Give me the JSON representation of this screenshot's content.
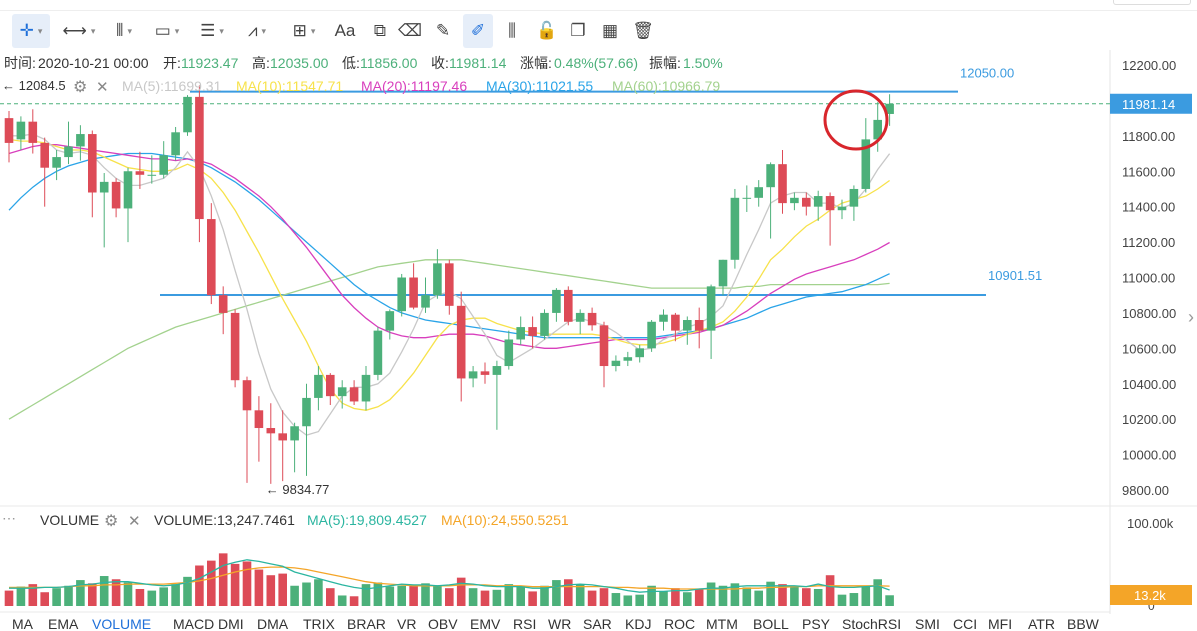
{
  "info_bar": {
    "time_label": "时间:",
    "time": "2020-10-21 00:00",
    "open_label": "开:",
    "open": "11923.47",
    "high_label": "高:",
    "high": "12035.00",
    "low_label": "低:",
    "low": "11856.00",
    "close_label": "收:",
    "close": "11981.14",
    "change_label": "涨幅:",
    "change": "0.48%(57.66)",
    "amp_label": "振幅:",
    "amp": "1.50%"
  },
  "ma_legend": {
    "label": "MA",
    "items": [
      {
        "text": "MA(5):11699.31",
        "color": "#c8c8c8"
      },
      {
        "text": "MA(10):11547.71",
        "color": "#f7e24b"
      },
      {
        "text": "MA(20):11197.46",
        "color": "#d83fbd"
      },
      {
        "text": "MA(30):11021.55",
        "color": "#2aa4e8"
      },
      {
        "text": "MA(60):10966.79",
        "color": "#a3d28e"
      }
    ],
    "cut_label": "← 12084.5"
  },
  "volume_legend": {
    "label": "VOLUME",
    "value": "VOLUME:13,247.7461",
    "ma5": "MA(5):19,809.4527",
    "ma10": "MA(10):24,550.5251",
    "ma5_color": "#2bb5a0",
    "ma10_color": "#f4a528"
  },
  "colors": {
    "up": "#4cb07a",
    "down": "#dd4b57",
    "hline": "#3b9be0",
    "price_box": "#3b9be0",
    "vol_box": "#f4a528",
    "circle": "#d8262c"
  },
  "price_tag": "11981.14",
  "vol_tag": "13.2k",
  "min_annotation": "← 9834.77",
  "toolbar_icons": [
    "crosshair-icon",
    "measure-icon",
    "bars-icon",
    "rectangle-icon",
    "list-icon",
    "fibonacci-icon",
    "zoom-icon",
    "text-icon",
    "pattern-icon",
    "eraser-icon",
    "pencil-icon",
    "draw-icon",
    "candle-style-icon",
    "lock-icon",
    "copy-icon",
    "layout-icon",
    "trash-icon"
  ],
  "toolbar_text": {
    "text_tool": "Aa"
  },
  "bottom_tabs": [
    "MA",
    "EMA",
    "VOLUME",
    "MACD",
    "DMI",
    "DMA",
    "TRIX",
    "BRAR",
    "VR",
    "OBV",
    "EMV",
    "RSI",
    "WR",
    "SAR",
    "KDJ",
    "ROC",
    "MTM",
    "BOLL",
    "PSY",
    "StochRSI",
    "SMI",
    "CCI",
    "MFI",
    "ATR",
    "BBW"
  ],
  "active_tab": "VOLUME",
  "chart_data": {
    "type": "candlestick",
    "price_axis": {
      "ticks": [
        12200,
        12000,
        11800,
        11600,
        11400,
        11200,
        11000,
        10800,
        10600,
        10400,
        10200,
        10000,
        9800
      ],
      "tick_labels": [
        "12200.00",
        "12000.00",
        "11800.00",
        "11600.00",
        "11400.00",
        "11200.00",
        "11000.00",
        "10800.00",
        "10600.00",
        "10400.00",
        "10200.00",
        "10000.00",
        "9800.00"
      ]
    },
    "volume_axis": {
      "max_label": "100.00k",
      "min_label": "0",
      "max": 100000
    },
    "horizontal_lines": [
      {
        "value": 12050,
        "label": "12050.00"
      },
      {
        "value": 10901.51,
        "label": "10901.51"
      }
    ],
    "candles": [
      {
        "o": 11900,
        "h": 11940,
        "l": 11650,
        "c": 11760,
        "v": 19000
      },
      {
        "o": 11780,
        "h": 11910,
        "l": 11720,
        "c": 11880,
        "v": 24000
      },
      {
        "o": 11880,
        "h": 11950,
        "l": 11700,
        "c": 11760,
        "v": 27000
      },
      {
        "o": 11760,
        "h": 11790,
        "l": 11400,
        "c": 11620,
        "v": 17000
      },
      {
        "o": 11620,
        "h": 11720,
        "l": 11550,
        "c": 11680,
        "v": 22000
      },
      {
        "o": 11680,
        "h": 11880,
        "l": 11640,
        "c": 11740,
        "v": 25000
      },
      {
        "o": 11740,
        "h": 11860,
        "l": 11660,
        "c": 11810,
        "v": 32000
      },
      {
        "o": 11810,
        "h": 11830,
        "l": 11340,
        "c": 11480,
        "v": 28000
      },
      {
        "o": 11480,
        "h": 11590,
        "l": 11170,
        "c": 11540,
        "v": 37000
      },
      {
        "o": 11540,
        "h": 11560,
        "l": 11340,
        "c": 11390,
        "v": 33000
      },
      {
        "o": 11390,
        "h": 11620,
        "l": 11200,
        "c": 11600,
        "v": 29000
      },
      {
        "o": 11600,
        "h": 11710,
        "l": 11500,
        "c": 11580,
        "v": 21000
      },
      {
        "o": 11580,
        "h": 11690,
        "l": 11530,
        "c": 11580,
        "v": 19000
      },
      {
        "o": 11580,
        "h": 11770,
        "l": 11560,
        "c": 11690,
        "v": 23000
      },
      {
        "o": 11690,
        "h": 11850,
        "l": 11660,
        "c": 11820,
        "v": 27000
      },
      {
        "o": 11820,
        "h": 12030,
        "l": 11800,
        "c": 12020,
        "v": 36000
      },
      {
        "o": 12020,
        "h": 12085,
        "l": 11200,
        "c": 11330,
        "v": 50000
      },
      {
        "o": 11330,
        "h": 11420,
        "l": 10850,
        "c": 10900,
        "v": 56000
      },
      {
        "o": 10900,
        "h": 10950,
        "l": 10680,
        "c": 10800,
        "v": 65000
      },
      {
        "o": 10800,
        "h": 10820,
        "l": 10380,
        "c": 10420,
        "v": 52000
      },
      {
        "o": 10420,
        "h": 10440,
        "l": 9840,
        "c": 10250,
        "v": 55000
      },
      {
        "o": 10250,
        "h": 10330,
        "l": 9960,
        "c": 10150,
        "v": 45000
      },
      {
        "o": 10150,
        "h": 10290,
        "l": 9834.77,
        "c": 10120,
        "v": 38000
      },
      {
        "o": 10120,
        "h": 10250,
        "l": 9850,
        "c": 10080,
        "v": 40000
      },
      {
        "o": 10080,
        "h": 10180,
        "l": 9900,
        "c": 10160,
        "v": 25000
      },
      {
        "o": 10160,
        "h": 10400,
        "l": 9880,
        "c": 10320,
        "v": 29000
      },
      {
        "o": 10320,
        "h": 10500,
        "l": 10250,
        "c": 10450,
        "v": 33000
      },
      {
        "o": 10450,
        "h": 10460,
        "l": 10280,
        "c": 10330,
        "v": 22000
      },
      {
        "o": 10330,
        "h": 10420,
        "l": 10260,
        "c": 10380,
        "v": 13000
      },
      {
        "o": 10380,
        "h": 10420,
        "l": 10280,
        "c": 10300,
        "v": 12000
      },
      {
        "o": 10300,
        "h": 10500,
        "l": 10250,
        "c": 10450,
        "v": 27000
      },
      {
        "o": 10450,
        "h": 10720,
        "l": 10420,
        "c": 10700,
        "v": 29000
      },
      {
        "o": 10700,
        "h": 10820,
        "l": 10650,
        "c": 10810,
        "v": 24000
      },
      {
        "o": 10810,
        "h": 11020,
        "l": 10780,
        "c": 11000,
        "v": 25000
      },
      {
        "o": 11000,
        "h": 11080,
        "l": 10820,
        "c": 10830,
        "v": 26000
      },
      {
        "o": 10830,
        "h": 11000,
        "l": 10800,
        "c": 10900,
        "v": 28000
      },
      {
        "o": 10900,
        "h": 11160,
        "l": 10880,
        "c": 11080,
        "v": 25000
      },
      {
        "o": 11080,
        "h": 11100,
        "l": 10790,
        "c": 10840,
        "v": 22000
      },
      {
        "o": 10840,
        "h": 10920,
        "l": 10300,
        "c": 10430,
        "v": 35000
      },
      {
        "o": 10430,
        "h": 10500,
        "l": 10380,
        "c": 10470,
        "v": 22000
      },
      {
        "o": 10470,
        "h": 10520,
        "l": 10400,
        "c": 10450,
        "v": 19000
      },
      {
        "o": 10450,
        "h": 10530,
        "l": 10140,
        "c": 10500,
        "v": 20000
      },
      {
        "o": 10500,
        "h": 10700,
        "l": 10480,
        "c": 10650,
        "v": 27000
      },
      {
        "o": 10650,
        "h": 10780,
        "l": 10620,
        "c": 10720,
        "v": 24000
      },
      {
        "o": 10720,
        "h": 10780,
        "l": 10600,
        "c": 10670,
        "v": 18000
      },
      {
        "o": 10670,
        "h": 10820,
        "l": 10650,
        "c": 10800,
        "v": 25000
      },
      {
        "o": 10800,
        "h": 10940,
        "l": 10750,
        "c": 10930,
        "v": 32000
      },
      {
        "o": 10930,
        "h": 10950,
        "l": 10730,
        "c": 10750,
        "v": 33000
      },
      {
        "o": 10750,
        "h": 10820,
        "l": 10680,
        "c": 10800,
        "v": 27000
      },
      {
        "o": 10800,
        "h": 10830,
        "l": 10700,
        "c": 10730,
        "v": 19000
      },
      {
        "o": 10730,
        "h": 10750,
        "l": 10380,
        "c": 10500,
        "v": 22000
      },
      {
        "o": 10500,
        "h": 10560,
        "l": 10470,
        "c": 10530,
        "v": 16000
      },
      {
        "o": 10530,
        "h": 10580,
        "l": 10500,
        "c": 10550,
        "v": 13000
      },
      {
        "o": 10550,
        "h": 10620,
        "l": 10520,
        "c": 10600,
        "v": 14000
      },
      {
        "o": 10600,
        "h": 10760,
        "l": 10580,
        "c": 10750,
        "v": 25000
      },
      {
        "o": 10750,
        "h": 10820,
        "l": 10700,
        "c": 10790,
        "v": 18000
      },
      {
        "o": 10790,
        "h": 10800,
        "l": 10640,
        "c": 10700,
        "v": 22000
      },
      {
        "o": 10700,
        "h": 10780,
        "l": 10620,
        "c": 10760,
        "v": 17000
      },
      {
        "o": 10760,
        "h": 10830,
        "l": 10600,
        "c": 10700,
        "v": 21000
      },
      {
        "o": 10700,
        "h": 10960,
        "l": 10540,
        "c": 10950,
        "v": 29000
      },
      {
        "o": 10950,
        "h": 11100,
        "l": 10900,
        "c": 11100,
        "v": 25000
      },
      {
        "o": 11100,
        "h": 11500,
        "l": 11050,
        "c": 11450,
        "v": 28000
      },
      {
        "o": 11450,
        "h": 11520,
        "l": 11370,
        "c": 11450,
        "v": 23000
      },
      {
        "o": 11450,
        "h": 11550,
        "l": 11400,
        "c": 11510,
        "v": 19000
      },
      {
        "o": 11510,
        "h": 11650,
        "l": 11220,
        "c": 11640,
        "v": 30000
      },
      {
        "o": 11640,
        "h": 11720,
        "l": 11360,
        "c": 11420,
        "v": 27000
      },
      {
        "o": 11420,
        "h": 11480,
        "l": 11380,
        "c": 11450,
        "v": 24000
      },
      {
        "o": 11450,
        "h": 11480,
        "l": 11350,
        "c": 11400,
        "v": 22000
      },
      {
        "o": 11400,
        "h": 11490,
        "l": 11320,
        "c": 11460,
        "v": 21000
      },
      {
        "o": 11460,
        "h": 11480,
        "l": 11180,
        "c": 11380,
        "v": 38000
      },
      {
        "o": 11380,
        "h": 11440,
        "l": 11330,
        "c": 11400,
        "v": 14000
      },
      {
        "o": 11400,
        "h": 11520,
        "l": 11320,
        "c": 11500,
        "v": 16000
      },
      {
        "o": 11500,
        "h": 11900,
        "l": 11480,
        "c": 11780,
        "v": 25000
      },
      {
        "o": 11780,
        "h": 11990,
        "l": 11710,
        "c": 11890,
        "v": 33000
      },
      {
        "o": 11923.47,
        "h": 12035,
        "l": 11856,
        "c": 11981.14,
        "v": 13247.7461
      }
    ],
    "ma": {
      "MA5": [
        11800,
        11800,
        11810,
        11780,
        11720,
        11700,
        11710,
        11690,
        11620,
        11560,
        11520,
        11520,
        11540,
        11560,
        11620,
        11710,
        11620,
        11460,
        11270,
        11040,
        10820,
        10570,
        10370,
        10240,
        10160,
        10110,
        10130,
        10230,
        10330,
        10380,
        10380,
        10400,
        10460,
        10580,
        10710,
        10860,
        10900,
        10920,
        10880,
        10780,
        10680,
        10560,
        10520,
        10560,
        10600,
        10650,
        10700,
        10750,
        10770,
        10750,
        10730,
        10690,
        10640,
        10590,
        10600,
        10650,
        10680,
        10720,
        10740,
        10780,
        10840,
        10980,
        11130,
        11270,
        11420,
        11460,
        11480,
        11480,
        11420,
        11420,
        11390,
        11420,
        11500,
        11610,
        11699.31
      ],
      "MA10": [
        11780,
        11770,
        11770,
        11760,
        11740,
        11720,
        11720,
        11710,
        11680,
        11650,
        11620,
        11610,
        11600,
        11600,
        11610,
        11640,
        11610,
        11560,
        11480,
        11380,
        11260,
        11140,
        11010,
        10880,
        10760,
        10640,
        10500,
        10370,
        10290,
        10260,
        10250,
        10270,
        10310,
        10380,
        10460,
        10560,
        10660,
        10730,
        10760,
        10770,
        10770,
        10740,
        10720,
        10700,
        10690,
        10680,
        10680,
        10680,
        10680,
        10680,
        10670,
        10650,
        10630,
        10620,
        10620,
        10630,
        10650,
        10680,
        10700,
        10720,
        10750,
        10810,
        10890,
        10990,
        11100,
        11160,
        11230,
        11290,
        11330,
        11380,
        11420,
        11440,
        11460,
        11500,
        11547.71
      ],
      "MA20": [
        11700,
        11720,
        11740,
        11750,
        11750,
        11740,
        11730,
        11720,
        11710,
        11700,
        11690,
        11680,
        11670,
        11670,
        11660,
        11670,
        11660,
        11640,
        11600,
        11560,
        11510,
        11460,
        11400,
        11330,
        11250,
        11170,
        11080,
        10990,
        10900,
        10830,
        10770,
        10720,
        10690,
        10670,
        10660,
        10660,
        10670,
        10680,
        10680,
        10680,
        10670,
        10650,
        10630,
        10620,
        10610,
        10600,
        10600,
        10610,
        10620,
        10630,
        10640,
        10650,
        10650,
        10650,
        10650,
        10660,
        10670,
        10680,
        10690,
        10710,
        10730,
        10770,
        10810,
        10860,
        10910,
        10950,
        10990,
        11020,
        11040,
        11060,
        11080,
        11100,
        11130,
        11160,
        11197.46
      ],
      "MA30": [
        11380,
        11450,
        11510,
        11560,
        11600,
        11630,
        11650,
        11670,
        11680,
        11690,
        11700,
        11700,
        11700,
        11690,
        11680,
        11670,
        11650,
        11620,
        11580,
        11540,
        11490,
        11440,
        11380,
        11320,
        11260,
        11200,
        11140,
        11080,
        11020,
        10960,
        10910,
        10870,
        10830,
        10800,
        10780,
        10760,
        10750,
        10740,
        10730,
        10720,
        10710,
        10700,
        10690,
        10680,
        10670,
        10660,
        10660,
        10660,
        10660,
        10660,
        10660,
        10660,
        10660,
        10660,
        10660,
        10670,
        10680,
        10690,
        10700,
        10710,
        10730,
        10750,
        10770,
        10800,
        10830,
        10850,
        10870,
        10890,
        10900,
        10910,
        10920,
        10940,
        10960,
        10990,
        11021.55
      ],
      "MA60": [
        10200,
        10240,
        10280,
        10320,
        10360,
        10400,
        10440,
        10480,
        10520,
        10560,
        10600,
        10630,
        10660,
        10690,
        10720,
        10740,
        10760,
        10780,
        10800,
        10820,
        10840,
        10860,
        10880,
        10900,
        10920,
        10940,
        10960,
        10980,
        11000,
        11020,
        11040,
        11060,
        11070,
        11080,
        11090,
        11100,
        11100,
        11100,
        11100,
        11090,
        11080,
        11070,
        11060,
        11050,
        11040,
        11030,
        11020,
        11010,
        11000,
        10990,
        10980,
        10970,
        10960,
        10950,
        10940,
        10940,
        10940,
        10940,
        10940,
        10940,
        10940,
        10940,
        10950,
        10950,
        10960,
        10960,
        10960,
        10960,
        10960,
        10960,
        10960,
        10960,
        10960,
        10960,
        10966.79
      ]
    },
    "volume_ma": {
      "MA5": [
        22000,
        22000,
        22000,
        23000,
        23000,
        24000,
        26000,
        27000,
        29000,
        30000,
        30000,
        28000,
        26000,
        25000,
        26000,
        29000,
        34000,
        42000,
        50000,
        54000,
        57000,
        55000,
        52000,
        49000,
        42000,
        38000,
        34000,
        30000,
        26000,
        23000,
        21000,
        23000,
        25000,
        27000,
        26000,
        26000,
        25000,
        26000,
        28000,
        27000,
        25000,
        24000,
        24000,
        24000,
        22000,
        22000,
        24000,
        26000,
        27000,
        26000,
        24000,
        22000,
        19000,
        17000,
        18000,
        18000,
        19000,
        19000,
        21000,
        22000,
        22000,
        24000,
        25000,
        25000,
        25000,
        25000,
        25000,
        24000,
        27000,
        24000,
        23000,
        23000,
        24000,
        25000,
        19809.45
      ],
      "MA10": [
        23000,
        23000,
        23000,
        23000,
        23000,
        24000,
        25000,
        25000,
        26000,
        26000,
        27000,
        27000,
        27000,
        27000,
        28000,
        29000,
        31000,
        34000,
        38000,
        42000,
        45000,
        47000,
        48000,
        48000,
        47000,
        45000,
        42000,
        39000,
        36000,
        33000,
        30000,
        28000,
        27000,
        26000,
        25000,
        25000,
        25000,
        25000,
        26000,
        26000,
        26000,
        25000,
        25000,
        25000,
        24000,
        24000,
        24000,
        24000,
        24000,
        24000,
        24000,
        23000,
        23000,
        22000,
        22000,
        22000,
        21000,
        21000,
        21000,
        21000,
        21000,
        21000,
        22000,
        22000,
        23000,
        23000,
        24000,
        24000,
        25000,
        25000,
        25000,
        25000,
        25000,
        25000,
        24550.53
      ]
    }
  }
}
